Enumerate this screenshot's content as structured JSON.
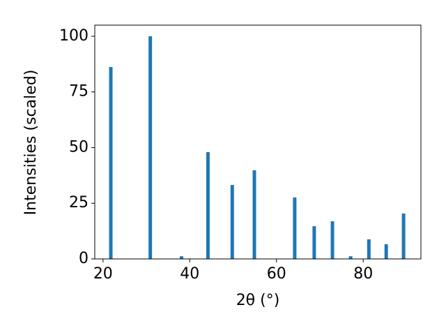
{
  "chart_data": {
    "type": "bar",
    "xlabel": "2θ (°)",
    "ylabel": "Intensities (scaled)",
    "x": [
      21.8,
      30.9,
      38.1,
      44.2,
      49.8,
      54.9,
      64.2,
      68.7,
      72.9,
      77.1,
      81.3,
      85.3,
      89.3
    ],
    "values": [
      86.2,
      100,
      1.2,
      48,
      33.2,
      39.8,
      27.6,
      14.7,
      16.9,
      1.2,
      8.8,
      6.6,
      20.4
    ],
    "color": "#1f77b4",
    "xlim": [
      18.1,
      93.3
    ],
    "xticks": [
      20,
      40,
      60,
      80
    ],
    "ylim": [
      0,
      105
    ],
    "yticks": [
      0,
      25,
      50,
      75,
      100
    ],
    "grid": false
  }
}
